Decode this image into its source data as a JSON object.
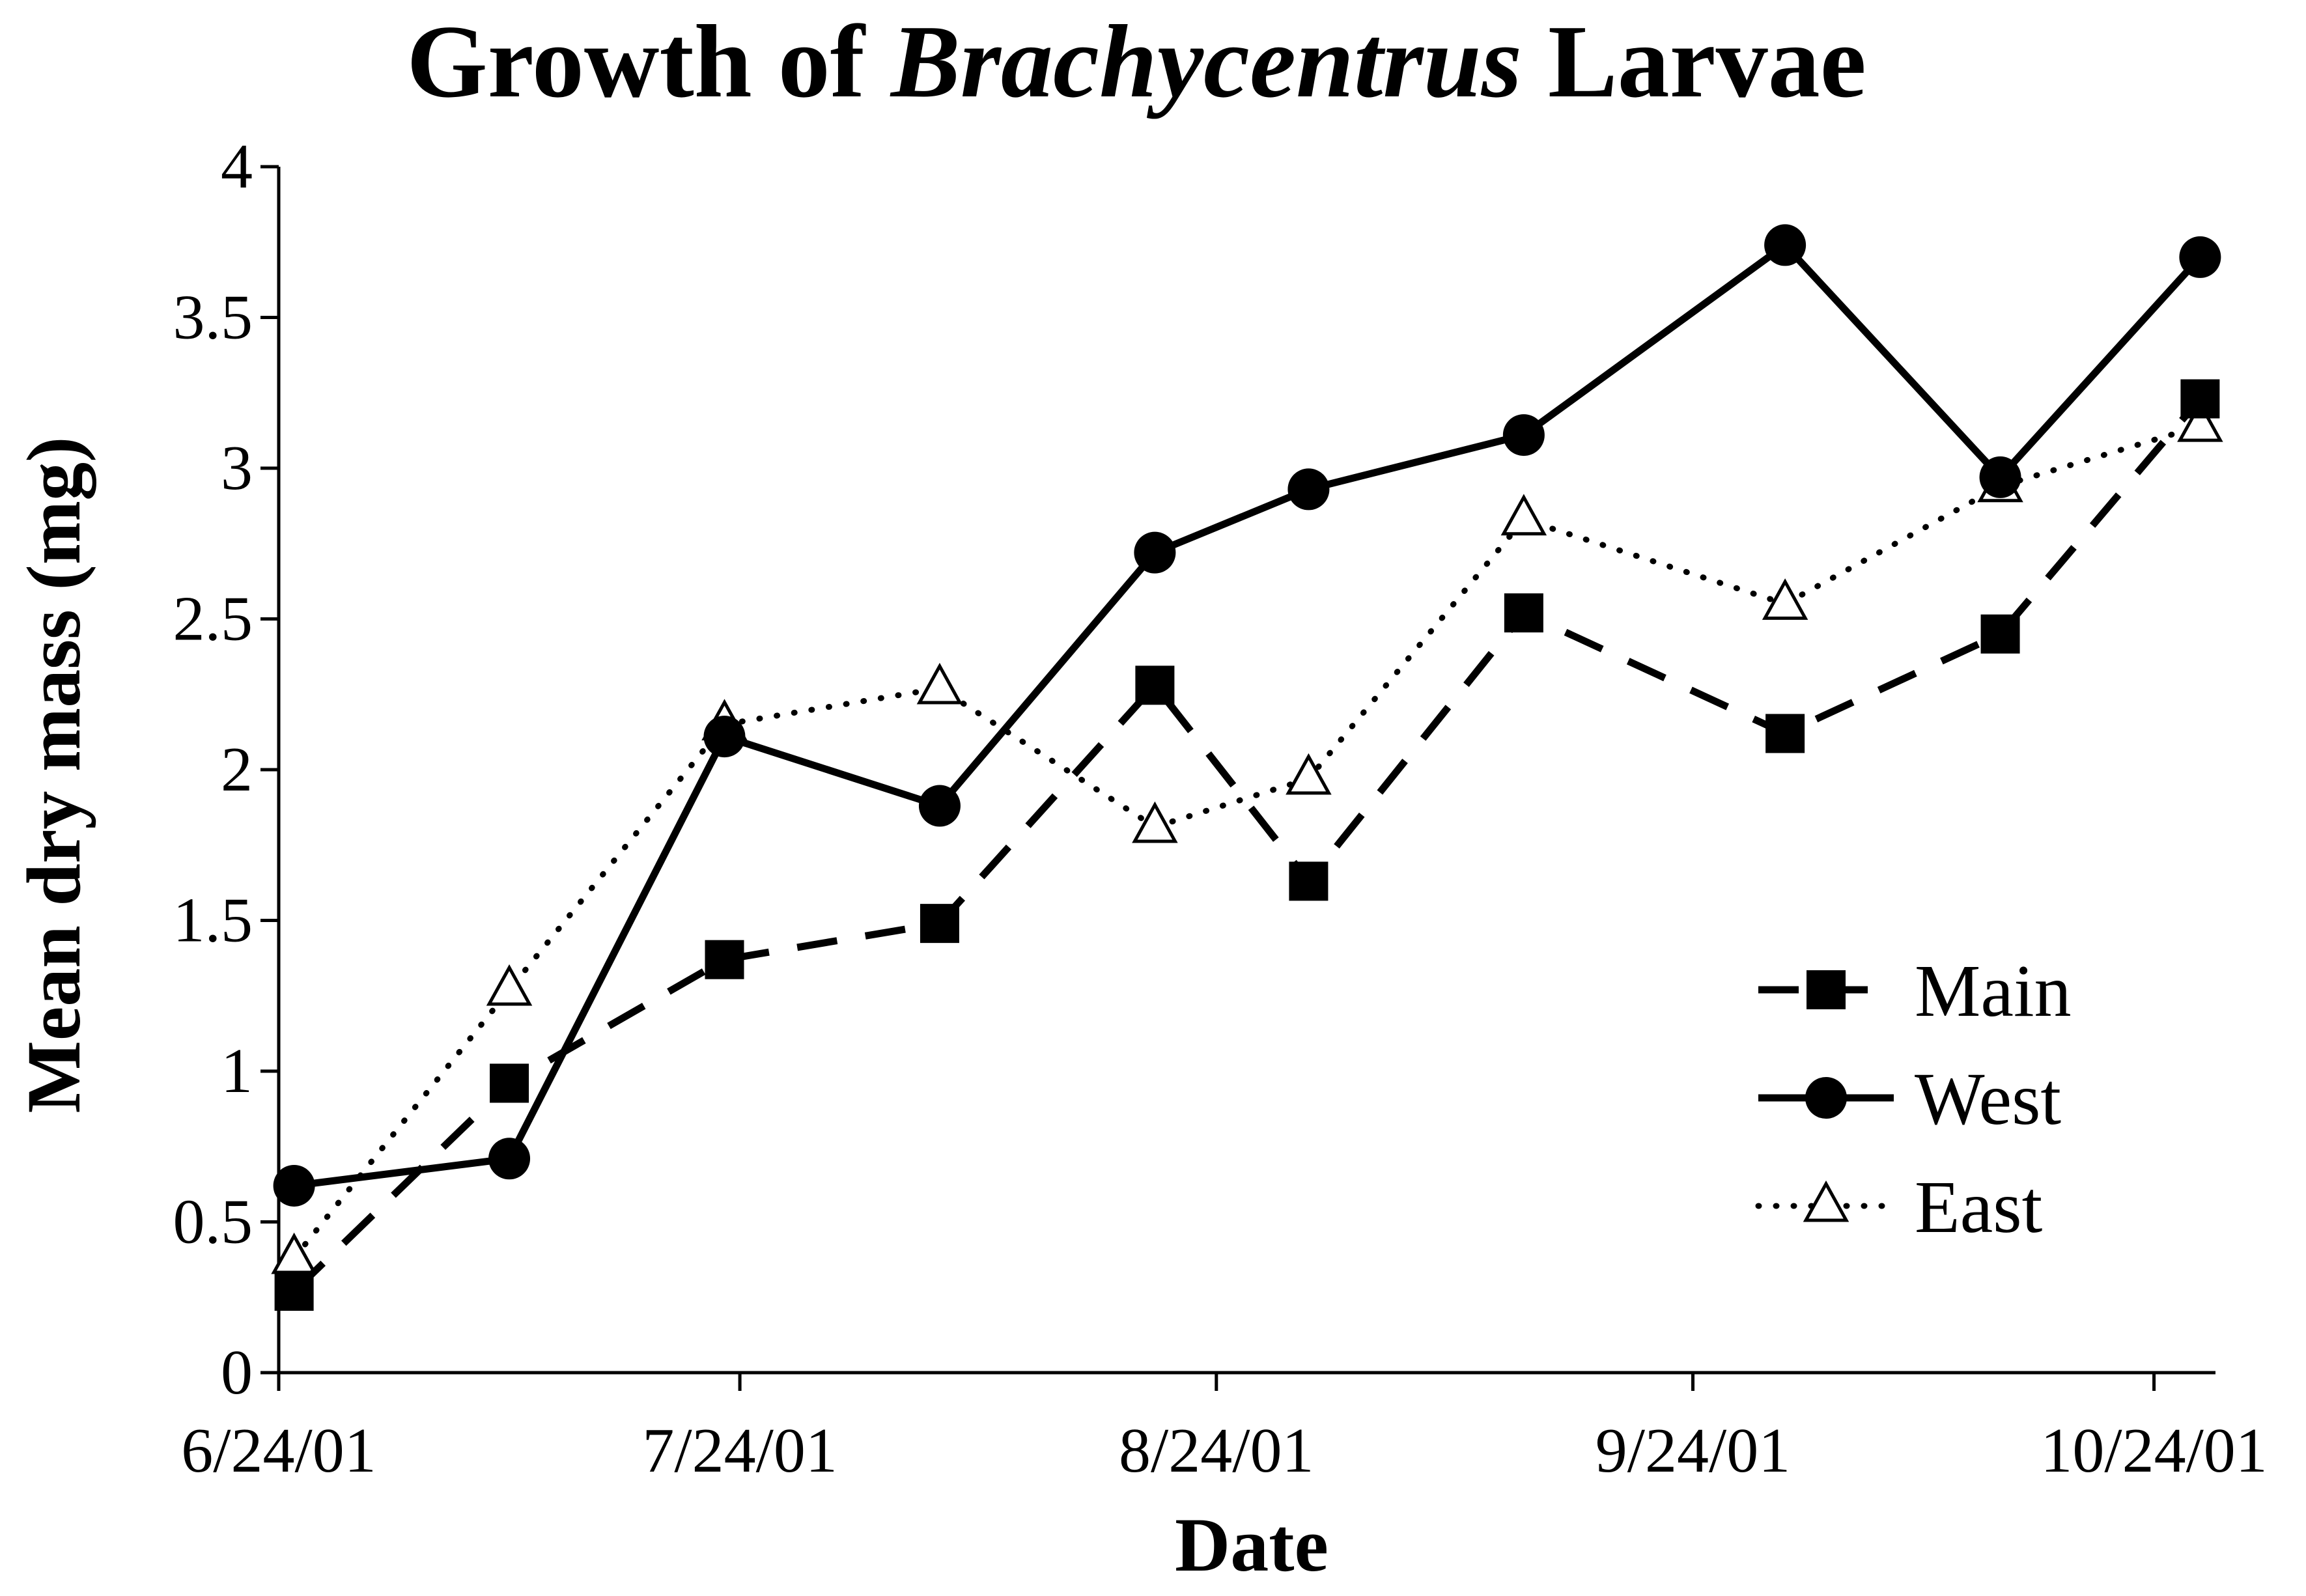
{
  "chart_data": {
    "type": "line",
    "title": {
      "before": "Growth of ",
      "italic": "Brachycentrus",
      "after": " Larvae"
    },
    "xlabel": "Date",
    "ylabel": "Mean dry mass (mg)",
    "x_ticks": [
      "6/24/01",
      "7/24/01",
      "8/24/01",
      "9/24/01",
      "10/24/01"
    ],
    "xlim": [
      "2001-06-24",
      "2001-10-28"
    ],
    "ylim": [
      0,
      4
    ],
    "y_ticks": [
      "0",
      "0.5",
      "1",
      "1.5",
      "2",
      "2.5",
      "3",
      "3.5",
      "4"
    ],
    "grid": false,
    "legend_position": "bottom-right",
    "series": [
      {
        "name": "Main",
        "marker": "square",
        "line_style": "dashed",
        "x": [
          "2001-06-25",
          "2001-07-09",
          "2001-07-23",
          "2001-08-06",
          "2001-08-20",
          "2001-08-30",
          "2001-09-13",
          "2001-09-30",
          "2001-10-14",
          "2001-10-27"
        ],
        "y": [
          0.27,
          0.96,
          1.37,
          1.49,
          2.28,
          1.63,
          2.52,
          2.12,
          2.45,
          3.23
        ]
      },
      {
        "name": "West",
        "marker": "circle",
        "line_style": "solid",
        "x": [
          "2001-06-25",
          "2001-07-09",
          "2001-07-23",
          "2001-08-06",
          "2001-08-20",
          "2001-08-30",
          "2001-09-13",
          "2001-09-30",
          "2001-10-14",
          "2001-10-27"
        ],
        "y": [
          0.62,
          0.71,
          2.11,
          1.88,
          2.72,
          2.93,
          3.11,
          3.74,
          2.97,
          3.7
        ]
      },
      {
        "name": "East",
        "marker": "triangle-open",
        "line_style": "dotted",
        "x": [
          "2001-06-25",
          "2001-07-09",
          "2001-07-23",
          "2001-08-06",
          "2001-08-20",
          "2001-08-30",
          "2001-09-13",
          "2001-09-30",
          "2001-10-14",
          "2001-10-27"
        ],
        "y": [
          0.38,
          1.27,
          2.15,
          2.27,
          1.81,
          1.97,
          2.83,
          2.55,
          2.94,
          3.14
        ]
      }
    ]
  }
}
